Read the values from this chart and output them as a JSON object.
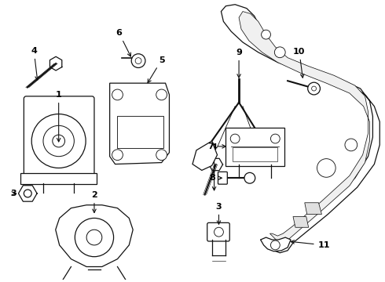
{
  "background": "#ffffff",
  "line_color": "#111111",
  "text_color": "#000000",
  "fig_width": 4.9,
  "fig_height": 3.6,
  "dpi": 100
}
